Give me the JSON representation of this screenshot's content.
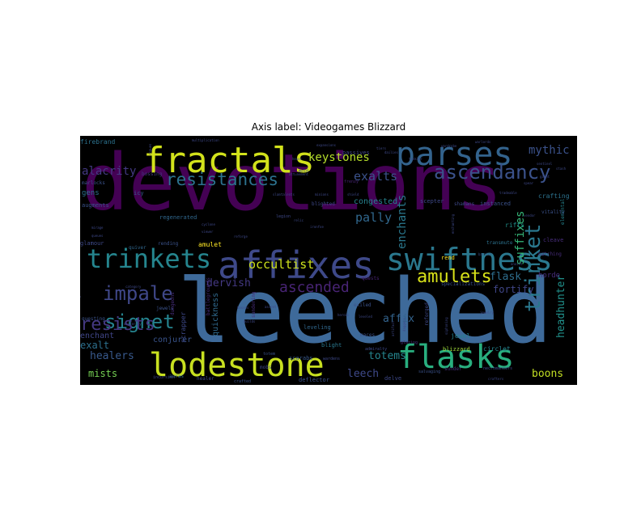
{
  "title": "Axis label: Videogames Blizzard",
  "colors": {
    "background": "#000000",
    "purple": "#440154",
    "indigo": "#482878",
    "slate": "#3e4989",
    "blue": "#31688e",
    "teal": "#26828e",
    "green": "#1f9e89",
    "lime": "#b5de2b",
    "yellow": "#dde318"
  },
  "words": [
    {
      "id": "devotions",
      "text": "devotions",
      "color": "#440154"
    },
    {
      "id": "leeched",
      "text": "leeched",
      "color": "#3e6a9a"
    },
    {
      "id": "fractals",
      "text": "fractals",
      "color": "#d2e21b"
    },
    {
      "id": "parses",
      "text": "parses",
      "color": "#33638d"
    },
    {
      "id": "affixes",
      "text": "affixes",
      "color": "#3e4989"
    },
    {
      "id": "swiftness",
      "text": "swiftness",
      "color": "#2a788e"
    },
    {
      "id": "lodestone",
      "text": "lodestone",
      "color": "#c8e020"
    },
    {
      "id": "flasks",
      "text": "flasks",
      "color": "#29af7f"
    },
    {
      "id": "trinkets",
      "text": "trinkets",
      "color": "#25858e"
    },
    {
      "id": "ascendancy",
      "text": "ascendancy",
      "color": "#3b528b"
    },
    {
      "id": "resistances",
      "text": "resistances",
      "color": "#2c728e"
    },
    {
      "id": "impale",
      "text": "impale",
      "color": "#3f4788"
    },
    {
      "id": "signet",
      "text": "signet",
      "color": "#25838e"
    },
    {
      "id": "resists",
      "text": "resists",
      "color": "#453882"
    },
    {
      "id": "amulets",
      "text": "amulets",
      "color": "#d8e219"
    },
    {
      "id": "trinket",
      "text": "trinket",
      "color": "#2a788e"
    },
    {
      "id": "ascended",
      "text": "ascended",
      "color": "#482475"
    },
    {
      "id": "keystones",
      "text": "keystones",
      "color": "#b5de2b"
    },
    {
      "id": "exalts",
      "text": "exalts",
      "color": "#3b528b"
    },
    {
      "id": "mythic",
      "text": "mythic",
      "color": "#3b528b"
    },
    {
      "id": "alacrity",
      "text": "alacrity",
      "color": "#443983"
    },
    {
      "id": "enchants",
      "text": "enchants",
      "color": "#2a788e"
    },
    {
      "id": "suffixes",
      "text": "suffixes",
      "color": "#35b779"
    },
    {
      "id": "pally",
      "text": "pally",
      "color": "#31688e"
    },
    {
      "id": "occultist",
      "text": "occultist",
      "color": "#cde11d"
    },
    {
      "id": "dervish",
      "text": "dervish",
      "color": "#443983"
    },
    {
      "id": "affix",
      "text": "affix",
      "color": "#33638d"
    },
    {
      "id": "flask",
      "text": "flask",
      "color": "#2e6e8e"
    },
    {
      "id": "fortify",
      "text": "fortify",
      "color": "#404688"
    },
    {
      "id": "headhunter",
      "text": "headhunter",
      "color": "#21918c"
    },
    {
      "id": "exalt",
      "text": "exalt",
      "color": "#2d708e"
    },
    {
      "id": "healers",
      "text": "healers",
      "color": "#38598c"
    },
    {
      "id": "totems",
      "text": "totems",
      "color": "#25858e"
    },
    {
      "id": "leech",
      "text": "leech",
      "color": "#3e4989"
    },
    {
      "id": "boons",
      "text": "boons",
      "color": "#c2df23"
    },
    {
      "id": "mists",
      "text": "mists",
      "color": "#75d054"
    },
    {
      "id": "enchant",
      "text": "enchant",
      "color": "#404688"
    },
    {
      "id": "conjurer",
      "text": "conjurer",
      "color": "#3a548c"
    },
    {
      "id": "quickness",
      "text": "quickness",
      "color": "#306a8e"
    },
    {
      "id": "congested",
      "text": "congested",
      "color": "#26828e"
    },
    {
      "id": "gens",
      "text": "gens",
      "color": "#2d708e"
    },
    {
      "id": "firebrand",
      "text": "firebrand",
      "color": "#2c728e"
    },
    {
      "id": "amulet",
      "text": "amulet",
      "color": "#fde725"
    },
    {
      "id": "scrapper",
      "text": "scrapper",
      "color": "#3e4989"
    },
    {
      "id": "blizzard",
      "text": "blizzard",
      "color": "#a0da39"
    },
    {
      "id": "circlet",
      "text": "circlet",
      "color": "#25838e"
    },
    {
      "id": "jewel",
      "text": "jewel",
      "color": "#27808e"
    },
    {
      "id": "rifts",
      "text": "rifts",
      "color": "#21918c"
    },
    {
      "id": "crafting",
      "text": "crafting",
      "color": "#2c728e"
    },
    {
      "id": "horde",
      "text": "horde",
      "color": "#472d7b"
    },
    {
      "id": "glamour",
      "text": "glamour",
      "color": "#3e4989"
    },
    {
      "id": "regenerated",
      "text": "regenerated",
      "color": "#31688e"
    },
    {
      "id": "augments",
      "text": "augments",
      "color": "#3b528b"
    },
    {
      "id": "icy",
      "text": "icy",
      "color": "#38598c"
    },
    {
      "id": "passives",
      "text": "passives",
      "color": "#404688"
    },
    {
      "id": "scepter",
      "text": "scepter",
      "color": "#3e4989"
    },
    {
      "id": "instanced",
      "text": "instanced",
      "color": "#3b528b"
    },
    {
      "id": "cleave",
      "text": "cleave",
      "color": "#472d7b"
    },
    {
      "id": "rend",
      "text": "rend",
      "color": "#fde725"
    },
    {
      "id": "blight",
      "text": "blight",
      "color": "#2a788e"
    },
    {
      "id": "leveling",
      "text": "leveling",
      "color": "#31688e"
    },
    {
      "id": "scarabs",
      "text": "scarabs",
      "color": "#38598c"
    },
    {
      "id": "deflector",
      "text": "deflector",
      "color": "#3b528b"
    },
    {
      "id": "delve",
      "text": "delve",
      "color": "#3e4989"
    },
    {
      "id": "healer",
      "text": "healer",
      "color": "#3e4989"
    },
    {
      "id": "auras",
      "text": "auras",
      "color": "#31688e"
    },
    {
      "id": "bossing",
      "text": "bossing",
      "color": "#453882"
    },
    {
      "id": "marlocks",
      "text": "marlocks",
      "color": "#3b528b"
    },
    {
      "id": "questing",
      "text": "questing",
      "color": "#3b528b"
    },
    {
      "id": "quiver",
      "text": "quiver",
      "color": "#31688e"
    },
    {
      "id": "rending",
      "text": "rending",
      "color": "#3b528b"
    },
    {
      "id": "batching",
      "text": "batching",
      "color": "#472d7b"
    },
    {
      "id": "elemental",
      "text": "elemental",
      "color": "#25838e"
    },
    {
      "id": "vitality",
      "text": "vitality",
      "color": "#3b528b"
    },
    {
      "id": "transmute",
      "text": "transmute",
      "color": "#2c728e"
    },
    {
      "id": "shamans",
      "text": "shamans",
      "color": "#3e4989"
    },
    {
      "id": "blighted",
      "text": "blighted",
      "color": "#3e4989"
    },
    {
      "id": "maces",
      "text": "maces",
      "color": "#3b528b"
    },
    {
      "id": "admiralty",
      "text": "admiralty",
      "color": "#3e4989"
    },
    {
      "id": "exiled",
      "text": "exiled",
      "color": "#3b528b"
    },
    {
      "id": "quests",
      "text": "quests",
      "color": "#482475"
    },
    {
      "id": "specializations",
      "text": "specializations",
      "color": "#3b528b"
    },
    {
      "id": "mobs",
      "text": "mobs",
      "color": "#3e4989"
    },
    {
      "id": "jewels",
      "text": "jewels",
      "color": "#3b528b"
    },
    {
      "id": "sundering",
      "text": "sundering",
      "color": "#472d7b"
    },
    {
      "id": "reforged",
      "text": "reforged",
      "color": "#3e4989"
    },
    {
      "id": "wardens",
      "text": "wardens",
      "color": "#3e4989"
    },
    {
      "id": "legion",
      "text": "legion",
      "color": "#3e4989"
    },
    {
      "id": "mold",
      "text": "mold",
      "color": "#3e4989"
    },
    {
      "id": "frenzy",
      "text": "frenzy",
      "color": "#482475"
    },
    {
      "id": "necromancers",
      "text": "necromancers",
      "color": "#3e4989"
    },
    {
      "id": "incursion",
      "text": "incursion",
      "color": "#3e4989"
    },
    {
      "id": "crafted",
      "text": "crafted",
      "color": "#3b528b"
    },
    {
      "id": "sunder",
      "text": "sunder",
      "color": "#472d7b"
    },
    {
      "id": "salvaging",
      "text": "salvaging",
      "color": "#3b528b"
    },
    {
      "id": "glaring",
      "text": "glaring",
      "color": "#472d7b"
    },
    {
      "id": "dungeons",
      "text": "dungeons",
      "color": "#472d7b"
    },
    {
      "id": "battlegrounds",
      "text": "battlegrounds",
      "color": "#472d7b"
    },
    {
      "id": "totem",
      "text": "totem",
      "color": "#3b528b"
    },
    {
      "id": "multiplication",
      "text": "multiplication",
      "color": "#3e4989"
    },
    {
      "id": "expansions",
      "text": "expansions",
      "color": "#3e4989"
    },
    {
      "id": "giant",
      "text": "giant",
      "color": "#3e4989"
    },
    {
      "id": "sentinel",
      "text": "sentinel",
      "color": "#3e4989"
    },
    {
      "id": "barrier",
      "text": "barrier",
      "color": "#3b528b"
    },
    {
      "id": "crafters",
      "text": "crafters",
      "color": "#3e4989"
    },
    {
      "id": "anoint",
      "text": "anoint",
      "color": "#3e4989"
    },
    {
      "id": "jewelry",
      "text": "jewelry",
      "color": "#3e4989"
    },
    {
      "id": "dexterity",
      "text": "dexterity",
      "color": "#3e4989"
    },
    {
      "id": "channeling",
      "text": "channeling",
      "color": "#3e4989"
    },
    {
      "id": "category",
      "text": "category",
      "color": "#3e4989"
    },
    {
      "id": "viewer",
      "text": "viewer",
      "color": "#3e4989"
    },
    {
      "id": "cyclone",
      "text": "cyclone",
      "color": "#3e4989"
    },
    {
      "id": "ironfoe",
      "text": "ironfoe",
      "color": "#3e4989"
    },
    {
      "id": "reforge",
      "text": "reforge",
      "color": "#3e4989"
    },
    {
      "id": "relic",
      "text": "relic",
      "color": "#3e4989"
    },
    {
      "id": "siphoning",
      "text": "siphoning",
      "color": "#3e4989"
    },
    {
      "id": "daggers",
      "text": "daggers",
      "color": "#3e4989"
    },
    {
      "id": "artifact",
      "text": "artifact",
      "color": "#3e4989"
    },
    {
      "id": "enchanting",
      "text": "enchanting",
      "color": "#3e4989"
    },
    {
      "id": "rogues",
      "text": "rogues",
      "color": "#3e4989"
    },
    {
      "id": "hexes",
      "text": "hexes",
      "color": "#3e4989"
    },
    {
      "id": "tiers",
      "text": "tiers",
      "color": "#3e4989"
    },
    {
      "id": "dailies",
      "text": "dailies",
      "color": "#3e4989"
    },
    {
      "id": "tankier",
      "text": "tankier",
      "color": "#3e4989"
    },
    {
      "id": "wardrobe",
      "text": "wardrobe",
      "color": "#3e4989"
    },
    {
      "id": "warlords",
      "text": "warlords",
      "color": "#3e4989"
    },
    {
      "id": "bosses",
      "text": "bosses",
      "color": "#3e4989"
    },
    {
      "id": "builds",
      "text": "builds",
      "color": "#3e4989"
    },
    {
      "id": "ascent",
      "text": "ascent",
      "color": "#3e4989"
    },
    {
      "id": "heroic",
      "text": "heroic",
      "color": "#3e4989"
    },
    {
      "id": "leveled",
      "text": "leveled",
      "color": "#3e4989"
    },
    {
      "id": "mirage",
      "text": "mirage",
      "color": "#3e4989"
    },
    {
      "id": "queues",
      "text": "queues",
      "color": "#3e4989"
    },
    {
      "id": "talents",
      "text": "talents",
      "color": "#3e4989"
    },
    {
      "id": "slam",
      "text": "slam",
      "color": "#3e4989"
    },
    {
      "id": "minions",
      "text": "minions",
      "color": "#3e4989"
    },
    {
      "id": "attunement",
      "text": "attunement",
      "color": "#3e4989"
    },
    {
      "id": "shield",
      "text": "shield",
      "color": "#3e4989"
    },
    {
      "id": "tradeable",
      "text": "tradeable",
      "color": "#3e4989"
    },
    {
      "id": "spear",
      "text": "spear",
      "color": "#3e4989"
    },
    {
      "id": "stash",
      "text": "stash",
      "color": "#3e4989"
    },
    {
      "id": "vendor",
      "text": "vendor",
      "color": "#3e4989"
    }
  ]
}
